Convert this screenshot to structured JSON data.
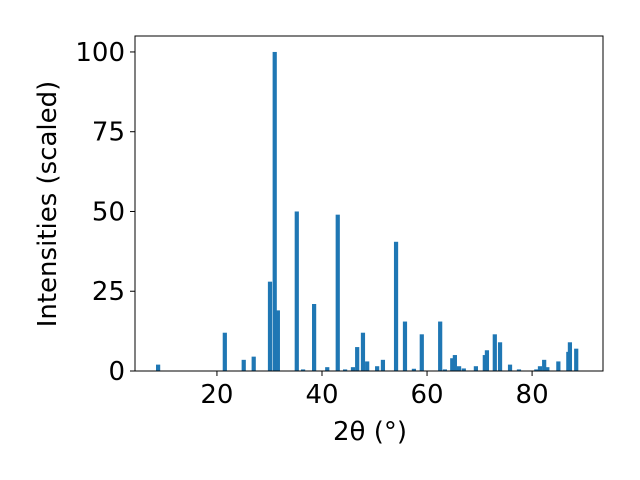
{
  "chart_data": {
    "type": "bar",
    "xlabel": "2θ (°)",
    "ylabel": "Intensities (scaled)",
    "color": "#1f77b4",
    "x": [
      8.8,
      21.5,
      25.1,
      27.0,
      30.1,
      31.0,
      31.6,
      35.2,
      36.4,
      38.5,
      41.0,
      43.0,
      44.4,
      45.9,
      46.7,
      47.8,
      48.6,
      50.5,
      51.6,
      54.1,
      55.8,
      57.5,
      59.0,
      62.5,
      63.4,
      64.8,
      65.3,
      66.1,
      67.0,
      69.3,
      71.0,
      71.4,
      72.9,
      73.9,
      75.8,
      77.5,
      80.8,
      81.5,
      82.3,
      82.9,
      85.0,
      86.9,
      87.2,
      88.4
    ],
    "values": [
      2,
      12,
      3.5,
      4.5,
      28,
      100,
      19,
      50,
      0.5,
      21,
      1.2,
      49,
      0.5,
      1.2,
      7.5,
      12,
      3,
      1.5,
      3.5,
      40.5,
      15.5,
      0.7,
      11.5,
      15.5,
      0.5,
      4,
      5,
      1.5,
      0.8,
      1.5,
      5,
      6.5,
      11.5,
      9,
      2,
      0.5,
      0.5,
      1.5,
      3.5,
      1.2,
      3,
      6,
      9,
      7
    ],
    "xlim": [
      4.4,
      93.5
    ],
    "ylim": [
      0,
      105
    ],
    "xticks": [
      20,
      40,
      60,
      80
    ],
    "yticks": [
      0,
      25,
      50,
      75,
      100
    ]
  }
}
